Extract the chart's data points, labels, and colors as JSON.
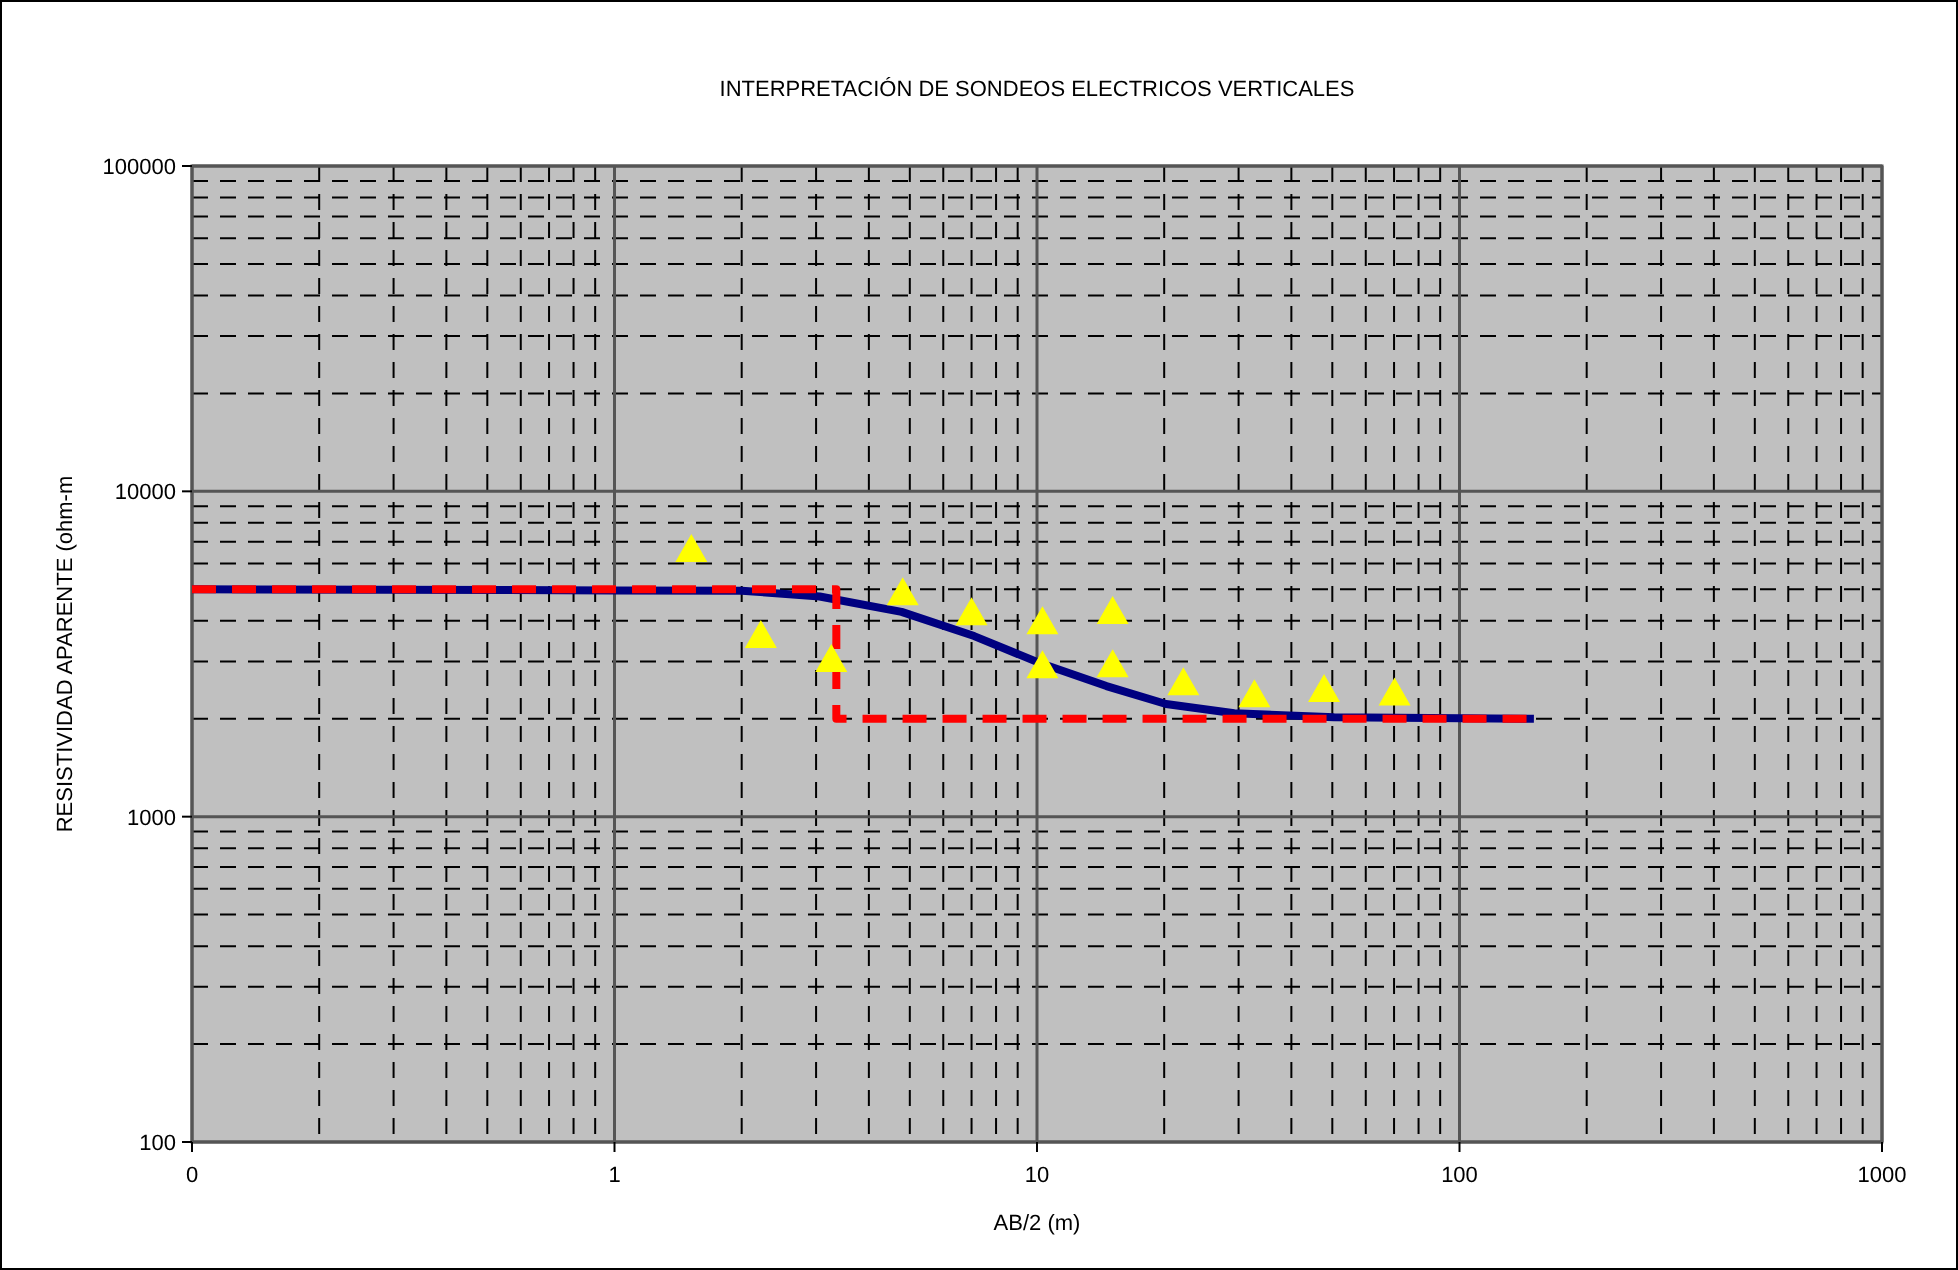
{
  "chart_data": {
    "type": "line",
    "title": "INTERPRETACIÓN DE SONDEOS ELECTRICOS VERTICALES",
    "xlabel": "AB/2 (m)",
    "ylabel": "RESISTIVIDAD APARENTE (ohm-m",
    "log": "xy",
    "grid": true,
    "xlim": [
      0.1,
      1000
    ],
    "xticks": [
      {
        "value": 0.1,
        "label": "0"
      },
      1,
      10,
      100,
      1000
    ],
    "ylim": [
      100,
      100000
    ],
    "yticks": [
      100,
      1000,
      10000,
      100000
    ],
    "series": [
      {
        "color": "#000080",
        "marker": "none",
        "line_style": "solid",
        "x": [
          0.1,
          1,
          2,
          3.06,
          4.78,
          7.1,
          10.2,
          14.6,
          20.2,
          29.3,
          50.5,
          150
        ],
        "values": [
          5000,
          4960,
          4950,
          4750,
          4260,
          3590,
          2960,
          2520,
          2220,
          2080,
          2020,
          2000
        ]
      },
      {
        "color": "#ff0000",
        "marker": "none",
        "line_style": "dashed",
        "x": [
          0.1,
          3.35,
          3.35,
          150
        ],
        "values": [
          5000,
          5000,
          2000,
          2000
        ]
      },
      {
        "type": "scatter",
        "color": "#ffff00",
        "marker": "triangle",
        "x": [
          1.52,
          2.22,
          3.26,
          4.81,
          7.0,
          10.3,
          10.3,
          15.1,
          15.1,
          22.2,
          32.7,
          47.8,
          70.2
        ],
        "values": [
          6600,
          3590,
          3030,
          4860,
          4220,
          3960,
          2900,
          4260,
          2920,
          2570,
          2360,
          2450,
          2390
        ]
      }
    ]
  }
}
